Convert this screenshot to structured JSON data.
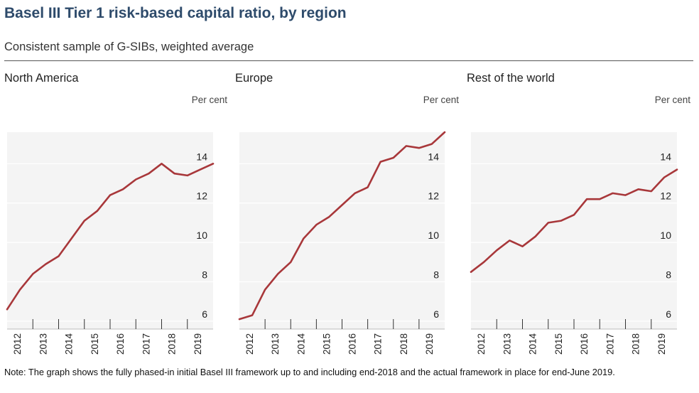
{
  "title": "Basel III Tier 1 risk-based capital ratio, by region",
  "subtitle": "Consistent sample of G-SIBs, weighted average",
  "note": "Note: The graph shows the fully phased-in initial Basel III framework up to and including end-2018 and the actual framework in place for end-June 2019.",
  "colors": {
    "line": "#a8373a",
    "panel_bg": "#f4f4f4",
    "grid": "#ffffff",
    "title": "#2e4b6b"
  },
  "chart_data": [
    {
      "type": "line",
      "title": "North America",
      "unit": "Per cent",
      "x_tick_labels": [
        "2012",
        "2013",
        "2014",
        "2015",
        "2016",
        "2017",
        "2018",
        "2019"
      ],
      "ylim": [
        5.6,
        15.6
      ],
      "yticks": [
        6,
        8,
        10,
        12,
        14
      ],
      "x": [
        2011.0,
        2011.5,
        2012.0,
        2012.5,
        2013.0,
        2013.5,
        2014.0,
        2014.5,
        2015.0,
        2015.5,
        2016.0,
        2016.5,
        2017.0,
        2017.5,
        2018.0,
        2018.5,
        2019.0
      ],
      "series": [
        {
          "values": [
            6.6,
            7.6,
            8.4,
            8.9,
            9.3,
            10.2,
            11.1,
            11.6,
            12.4,
            12.7,
            13.2,
            13.5,
            14.0,
            13.5,
            13.4,
            13.7,
            14.0
          ]
        }
      ]
    },
    {
      "type": "line",
      "title": "Europe",
      "unit": "Per cent",
      "x_tick_labels": [
        "2012",
        "2013",
        "2014",
        "2015",
        "2016",
        "2017",
        "2018",
        "2019"
      ],
      "ylim": [
        5.6,
        15.6
      ],
      "yticks": [
        6,
        8,
        10,
        12,
        14
      ],
      "x": [
        2011.0,
        2011.5,
        2012.0,
        2012.5,
        2013.0,
        2013.5,
        2014.0,
        2014.5,
        2015.0,
        2015.5,
        2016.0,
        2016.5,
        2017.0,
        2017.5,
        2018.0,
        2018.5,
        2019.0
      ],
      "series": [
        {
          "values": [
            6.1,
            6.3,
            7.6,
            8.4,
            9.0,
            10.2,
            10.9,
            11.3,
            11.9,
            12.5,
            12.8,
            14.1,
            14.3,
            14.9,
            14.8,
            15.0,
            15.6
          ]
        }
      ]
    },
    {
      "type": "line",
      "title": "Rest of the world",
      "unit": "Per cent",
      "x_tick_labels": [
        "2012",
        "2013",
        "2014",
        "2015",
        "2016",
        "2017",
        "2018",
        "2019"
      ],
      "ylim": [
        5.6,
        15.6
      ],
      "yticks": [
        6,
        8,
        10,
        12,
        14
      ],
      "x": [
        2011.0,
        2011.5,
        2012.0,
        2012.5,
        2013.0,
        2013.5,
        2014.0,
        2014.5,
        2015.0,
        2015.5,
        2016.0,
        2016.5,
        2017.0,
        2017.5,
        2018.0,
        2018.5,
        2019.0
      ],
      "series": [
        {
          "values": [
            8.5,
            9.0,
            9.6,
            10.1,
            9.8,
            10.3,
            11.0,
            11.1,
            11.4,
            12.2,
            12.2,
            12.5,
            12.4,
            12.7,
            12.6,
            13.3,
            13.7
          ]
        }
      ]
    }
  ]
}
